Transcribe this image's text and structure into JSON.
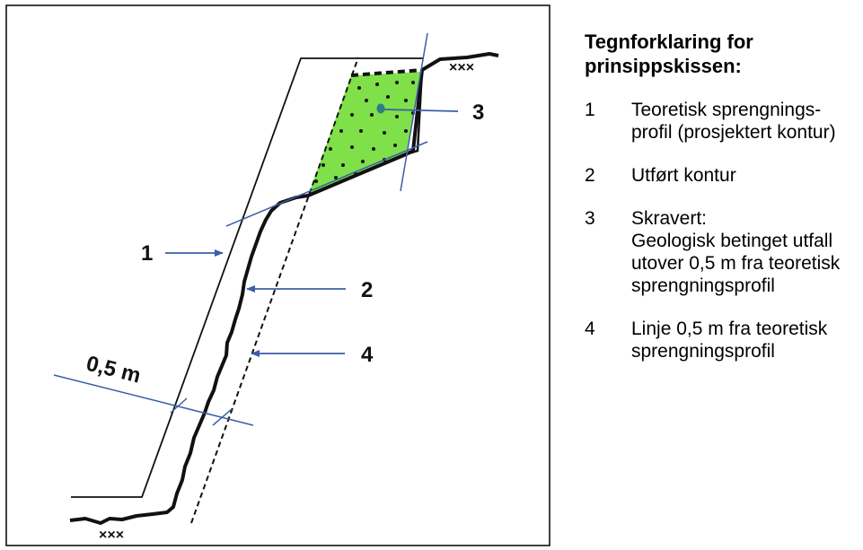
{
  "diagram": {
    "labels": {
      "label_1": "1",
      "label_2": "2",
      "label_3": "3",
      "label_4": "4",
      "dimension": "0,5 m"
    },
    "colors": {
      "arrow_blue": "#3b5ea8",
      "fill_green": "#7fe04a",
      "line_black": "#111111"
    }
  },
  "legend": {
    "title": "Tegnforklaring for\nprinsippskissen:",
    "items": [
      {
        "num": "1",
        "text": "Teoretisk sprengnings-\nprofil (prosjektert kontur)"
      },
      {
        "num": "2",
        "text": "Utført kontur"
      },
      {
        "num": "3",
        "text": "Skravert:\nGeologisk betinget utfall\nutover 0,5 m fra teoretisk\nsprengningsprofil"
      },
      {
        "num": "4",
        "text": "Linje 0,5 m fra teoretisk\nsprengningsprofil"
      }
    ]
  }
}
